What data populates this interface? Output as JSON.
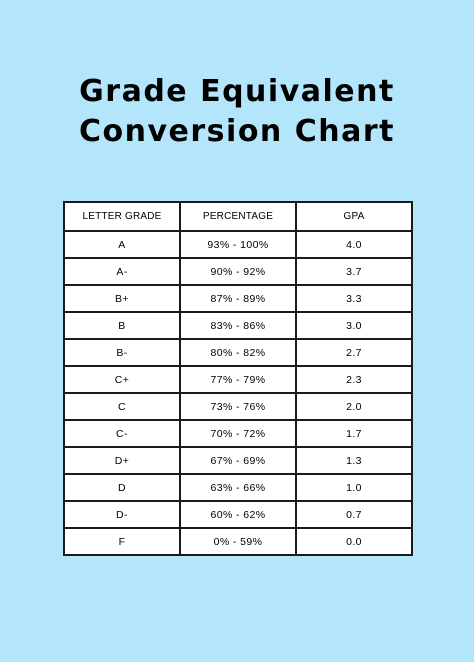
{
  "title": {
    "line1": "Grade Equivalent",
    "line2": "Conversion Chart"
  },
  "table": {
    "headers": [
      "LETTER GRADE",
      "PERCENTAGE",
      "GPA"
    ],
    "rows": [
      [
        "A",
        "93% - 100%",
        "4.0"
      ],
      [
        "A-",
        "90% - 92%",
        "3.7"
      ],
      [
        "B+",
        "87% - 89%",
        "3.3"
      ],
      [
        "B",
        "83% - 86%",
        "3.0"
      ],
      [
        "B-",
        "80% - 82%",
        "2.7"
      ],
      [
        "C+",
        "77% - 79%",
        "2.3"
      ],
      [
        "C",
        "73% - 76%",
        "2.0"
      ],
      [
        "C-",
        "70% - 72%",
        "1.7"
      ],
      [
        "D+",
        "67% - 69%",
        "1.3"
      ],
      [
        "D",
        "63% - 66%",
        "1.0"
      ],
      [
        "D-",
        "60% - 62%",
        "0.7"
      ],
      [
        "F",
        "0% - 59%",
        "0.0"
      ]
    ]
  },
  "colors": {
    "background": "#b3e5fb",
    "table_background": "#ffffff",
    "border": "#1a1a1a"
  }
}
